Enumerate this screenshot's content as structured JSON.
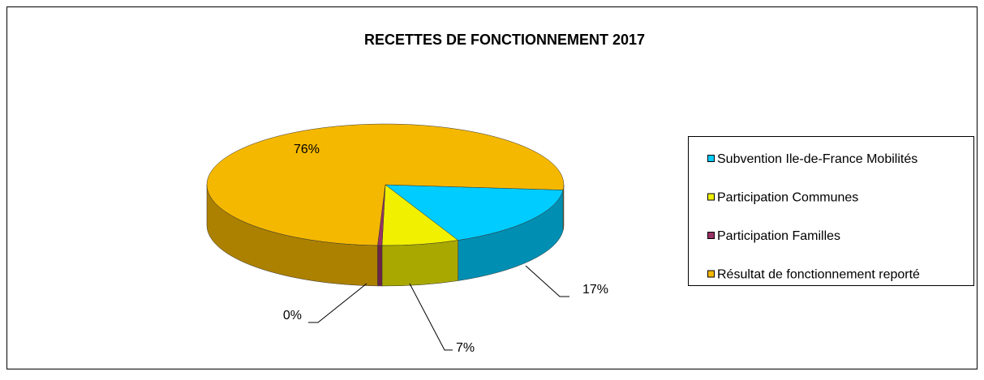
{
  "chart_data": {
    "type": "pie",
    "title": "RECETTES DE FONCTIONNEMENT 2017",
    "categories": [
      "Subvention Ile-de-France Mobilités",
      "Participation Communes",
      "Participation Familles",
      "Résultat de fonctionnement reporté"
    ],
    "values": [
      17,
      7,
      0.4,
      76
    ],
    "value_labels": [
      "17%",
      "7%",
      "0%",
      "76%"
    ],
    "colors": [
      "#00ccff",
      "#f0f000",
      "#993366",
      "#f5b800"
    ],
    "legend": "right"
  }
}
